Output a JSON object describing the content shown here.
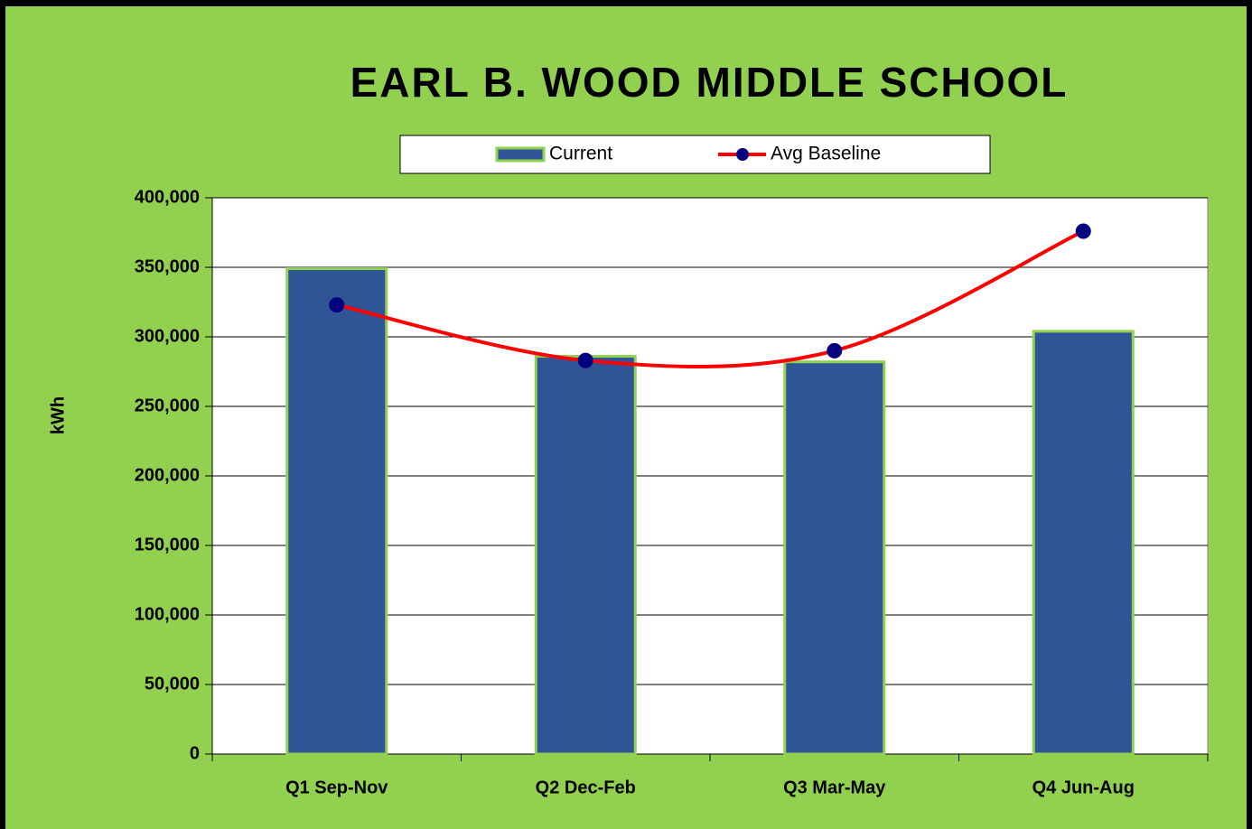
{
  "chart_data": {
    "type": "bar_line",
    "title": "EARL B. WOOD MIDDLE SCHOOL",
    "ylabel": "kWh",
    "categories": [
      "Q1 Sep-Nov",
      "Q2 Dec-Feb",
      "Q3 Mar-May",
      "Q4 Jun-Aug"
    ],
    "series": [
      {
        "name": "Current",
        "type": "bar",
        "color": "#2f5597",
        "values": [
          349000,
          286000,
          282000,
          304000
        ]
      },
      {
        "name": "Avg Baseline",
        "type": "line",
        "color": "#ff0000",
        "marker_color": "#000080",
        "values": [
          323000,
          283000,
          290000,
          376000
        ]
      }
    ],
    "ylim": [
      0,
      400000
    ],
    "yticks": [
      0,
      {
        "value": 50000,
        "label": "50,000"
      },
      {
        "value": 100000,
        "label": "100,000"
      },
      {
        "value": 150000,
        "label": "150,000"
      },
      {
        "value": 200000,
        "label": "200,000"
      },
      {
        "value": 250000,
        "label": "250,000"
      },
      {
        "value": 300000,
        "label": "300,000"
      },
      {
        "value": 350000,
        "label": "350,000"
      },
      {
        "value": 400000,
        "label": "400,000"
      }
    ],
    "grid": true,
    "legend": "top"
  }
}
